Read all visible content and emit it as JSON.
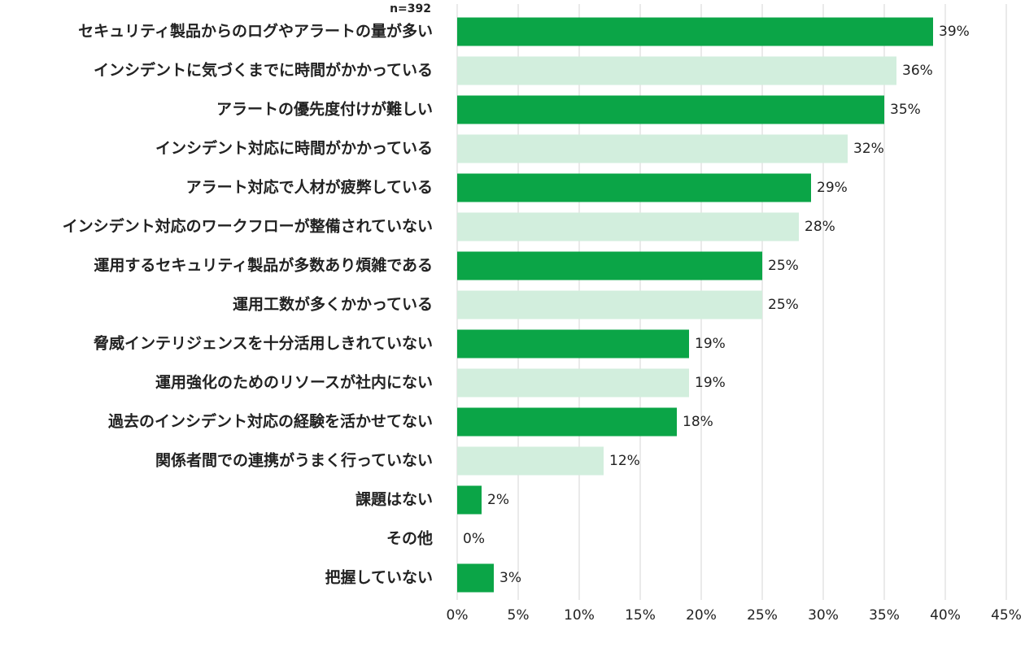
{
  "chart_data": {
    "type": "bar",
    "orientation": "horizontal",
    "annotation": "n=392",
    "categories": [
      "セキュリティ製品からのログやアラートの量が多い",
      "インシデントに気づくまでに時間がかかっている",
      "アラートの優先度付けが難しい",
      "インシデント対応に時間がかかっている",
      "アラート対応で人材が疲弊している",
      "インシデント対応のワークフローが整備されていない",
      "運用するセキュリティ製品が多数あり煩雑である",
      "運用工数が多くかかっている",
      "脅威インテリジェンスを十分活用しきれていない",
      "運用強化のためのリソースが社内にない",
      "過去のインシデント対応の経験を活かせてない",
      "関係者間での連携がうまく行っていない",
      "課題はない",
      "その他",
      "把握していない"
    ],
    "values": [
      39,
      36,
      35,
      32,
      29,
      28,
      25,
      25,
      19,
      19,
      18,
      12,
      2,
      0,
      3
    ],
    "value_labels": [
      "39%",
      "36%",
      "35%",
      "32%",
      "29%",
      "28%",
      "25%",
      "25%",
      "19%",
      "19%",
      "18%",
      "12%",
      "2%",
      "0%",
      "3%"
    ],
    "colors": [
      "#0ba547",
      "#d2eedd",
      "#0ba547",
      "#d2eedd",
      "#0ba547",
      "#d2eedd",
      "#0ba547",
      "#d2eedd",
      "#0ba547",
      "#d2eedd",
      "#0ba547",
      "#d2eedd",
      "#0ba547",
      "#d2eedd",
      "#0ba547"
    ],
    "xlim": [
      0,
      45
    ],
    "xticks": [
      {
        "value": 0,
        "label": "0%"
      },
      {
        "value": 5,
        "label": "5%"
      },
      {
        "value": 10,
        "label": "10%"
      },
      {
        "value": 15,
        "label": "15%"
      },
      {
        "value": 20,
        "label": "20%"
      },
      {
        "value": 25,
        "label": "25%"
      },
      {
        "value": 30,
        "label": "30%"
      },
      {
        "value": 35,
        "label": "35%"
      },
      {
        "value": 40,
        "label": "40%"
      },
      {
        "value": 45,
        "label": "45%"
      }
    ],
    "grid": true
  }
}
